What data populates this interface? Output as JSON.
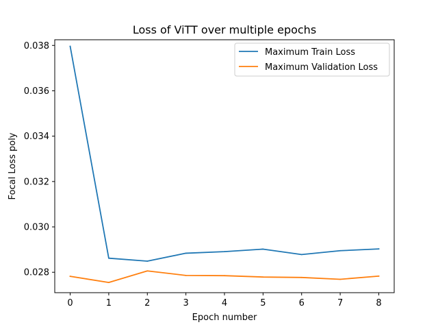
{
  "chart_data": {
    "type": "line",
    "title": "Loss of ViTT over multiple epochs",
    "xlabel": "Epoch number",
    "ylabel": "Focal Loss poly",
    "x": [
      0,
      1,
      2,
      3,
      4,
      5,
      6,
      7,
      8
    ],
    "xlim": [
      -0.4,
      8.4
    ],
    "ylim": [
      0.0271,
      0.03825
    ],
    "xticks": [
      "0",
      "1",
      "2",
      "3",
      "4",
      "5",
      "6",
      "7",
      "8"
    ],
    "yticks": [
      "0.028",
      "0.030",
      "0.032",
      "0.034",
      "0.036",
      "0.038"
    ],
    "grid": false,
    "legend_position": "top-right",
    "series": [
      {
        "name": "Maximum Train Loss",
        "color": "#1f77b4",
        "values": [
          0.03796,
          0.02862,
          0.02849,
          0.02884,
          0.02891,
          0.02902,
          0.02878,
          0.02895,
          0.02903
        ]
      },
      {
        "name": "Maximum Validation Loss",
        "color": "#ff7f0e",
        "values": [
          0.02782,
          0.02755,
          0.02806,
          0.02786,
          0.02785,
          0.02779,
          0.02777,
          0.02769,
          0.02783
        ]
      }
    ]
  }
}
